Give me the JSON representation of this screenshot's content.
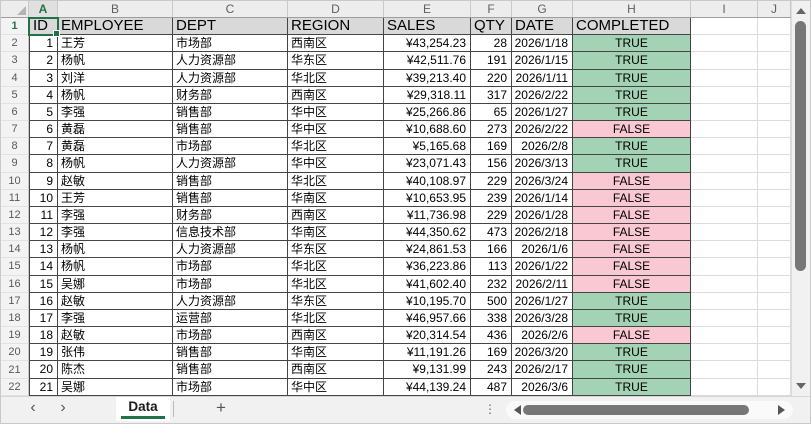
{
  "sheet": {
    "name": "Data",
    "selected_cell": "A1",
    "row_count": 22,
    "column_letters": [
      "A",
      "B",
      "C",
      "D",
      "E",
      "F",
      "G",
      "H",
      "I",
      "J"
    ],
    "headers": [
      "ID",
      "EMPLOYEE",
      "DEPT",
      "REGION",
      "SALES",
      "QTY",
      "DATE",
      "COMPLETED"
    ],
    "rows": [
      [
        1,
        "王芳",
        "市场部",
        "西南区",
        "¥43,254.23",
        "28",
        "2026/1/18",
        "TRUE"
      ],
      [
        2,
        "杨帆",
        "人力资源部",
        "华东区",
        "¥42,511.76",
        "191",
        "2026/1/15",
        "TRUE"
      ],
      [
        3,
        "刘洋",
        "人力资源部",
        "华北区",
        "¥39,213.40",
        "220",
        "2026/1/11",
        "TRUE"
      ],
      [
        4,
        "杨帆",
        "财务部",
        "西南区",
        "¥29,318.11",
        "317",
        "2026/2/22",
        "TRUE"
      ],
      [
        5,
        "李强",
        "销售部",
        "华中区",
        "¥25,266.86",
        "65",
        "2026/1/27",
        "TRUE"
      ],
      [
        6,
        "黄磊",
        "销售部",
        "华中区",
        "¥10,688.60",
        "273",
        "2026/2/22",
        "FALSE"
      ],
      [
        7,
        "黄磊",
        "市场部",
        "华北区",
        "¥5,165.68",
        "169",
        "2026/2/8",
        "TRUE"
      ],
      [
        8,
        "杨帆",
        "人力资源部",
        "华中区",
        "¥23,071.43",
        "156",
        "2026/3/13",
        "TRUE"
      ],
      [
        9,
        "赵敏",
        "销售部",
        "华北区",
        "¥40,108.97",
        "229",
        "2026/3/24",
        "FALSE"
      ],
      [
        10,
        "王芳",
        "销售部",
        "华南区",
        "¥10,653.95",
        "239",
        "2026/1/14",
        "FALSE"
      ],
      [
        11,
        "李强",
        "财务部",
        "西南区",
        "¥11,736.98",
        "229",
        "2026/1/28",
        "FALSE"
      ],
      [
        12,
        "李强",
        "信息技术部",
        "华南区",
        "¥44,350.62",
        "473",
        "2026/2/18",
        "FALSE"
      ],
      [
        13,
        "杨帆",
        "人力资源部",
        "华东区",
        "¥24,861.53",
        "166",
        "2026/1/6",
        "FALSE"
      ],
      [
        14,
        "杨帆",
        "市场部",
        "华北区",
        "¥36,223.86",
        "113",
        "2026/1/22",
        "FALSE"
      ],
      [
        15,
        "吴娜",
        "市场部",
        "华北区",
        "¥41,602.40",
        "232",
        "2026/2/11",
        "FALSE"
      ],
      [
        16,
        "赵敏",
        "人力资源部",
        "华东区",
        "¥10,195.70",
        "500",
        "2026/1/27",
        "TRUE"
      ],
      [
        17,
        "李强",
        "运营部",
        "华北区",
        "¥46,957.66",
        "338",
        "2026/3/28",
        "TRUE"
      ],
      [
        18,
        "赵敏",
        "市场部",
        "西南区",
        "¥20,314.54",
        "436",
        "2026/2/6",
        "FALSE"
      ],
      [
        19,
        "张伟",
        "销售部",
        "华南区",
        "¥11,191.26",
        "169",
        "2026/3/20",
        "TRUE"
      ],
      [
        20,
        "陈杰",
        "销售部",
        "西南区",
        "¥9,131.99",
        "243",
        "2026/2/17",
        "TRUE"
      ],
      [
        21,
        "吴娜",
        "市场部",
        "华中区",
        "¥44,139.24",
        "487",
        "2026/3/6",
        "TRUE"
      ]
    ]
  },
  "tabbar": {
    "prev_icon": "‹",
    "next_icon": "›",
    "sheet_tab_label": "Data",
    "add_sheet_label": "+",
    "splitter_icon": "⋮"
  },
  "colors": {
    "accent_green": "#217346",
    "true_fill": "#A3D2B5",
    "false_fill": "#F9C8D2",
    "header_row_fill": "#D9D9D9",
    "header_strip_fill": "#EDEDED",
    "table_border": "#454545",
    "scroll_thumb": "#777777"
  }
}
